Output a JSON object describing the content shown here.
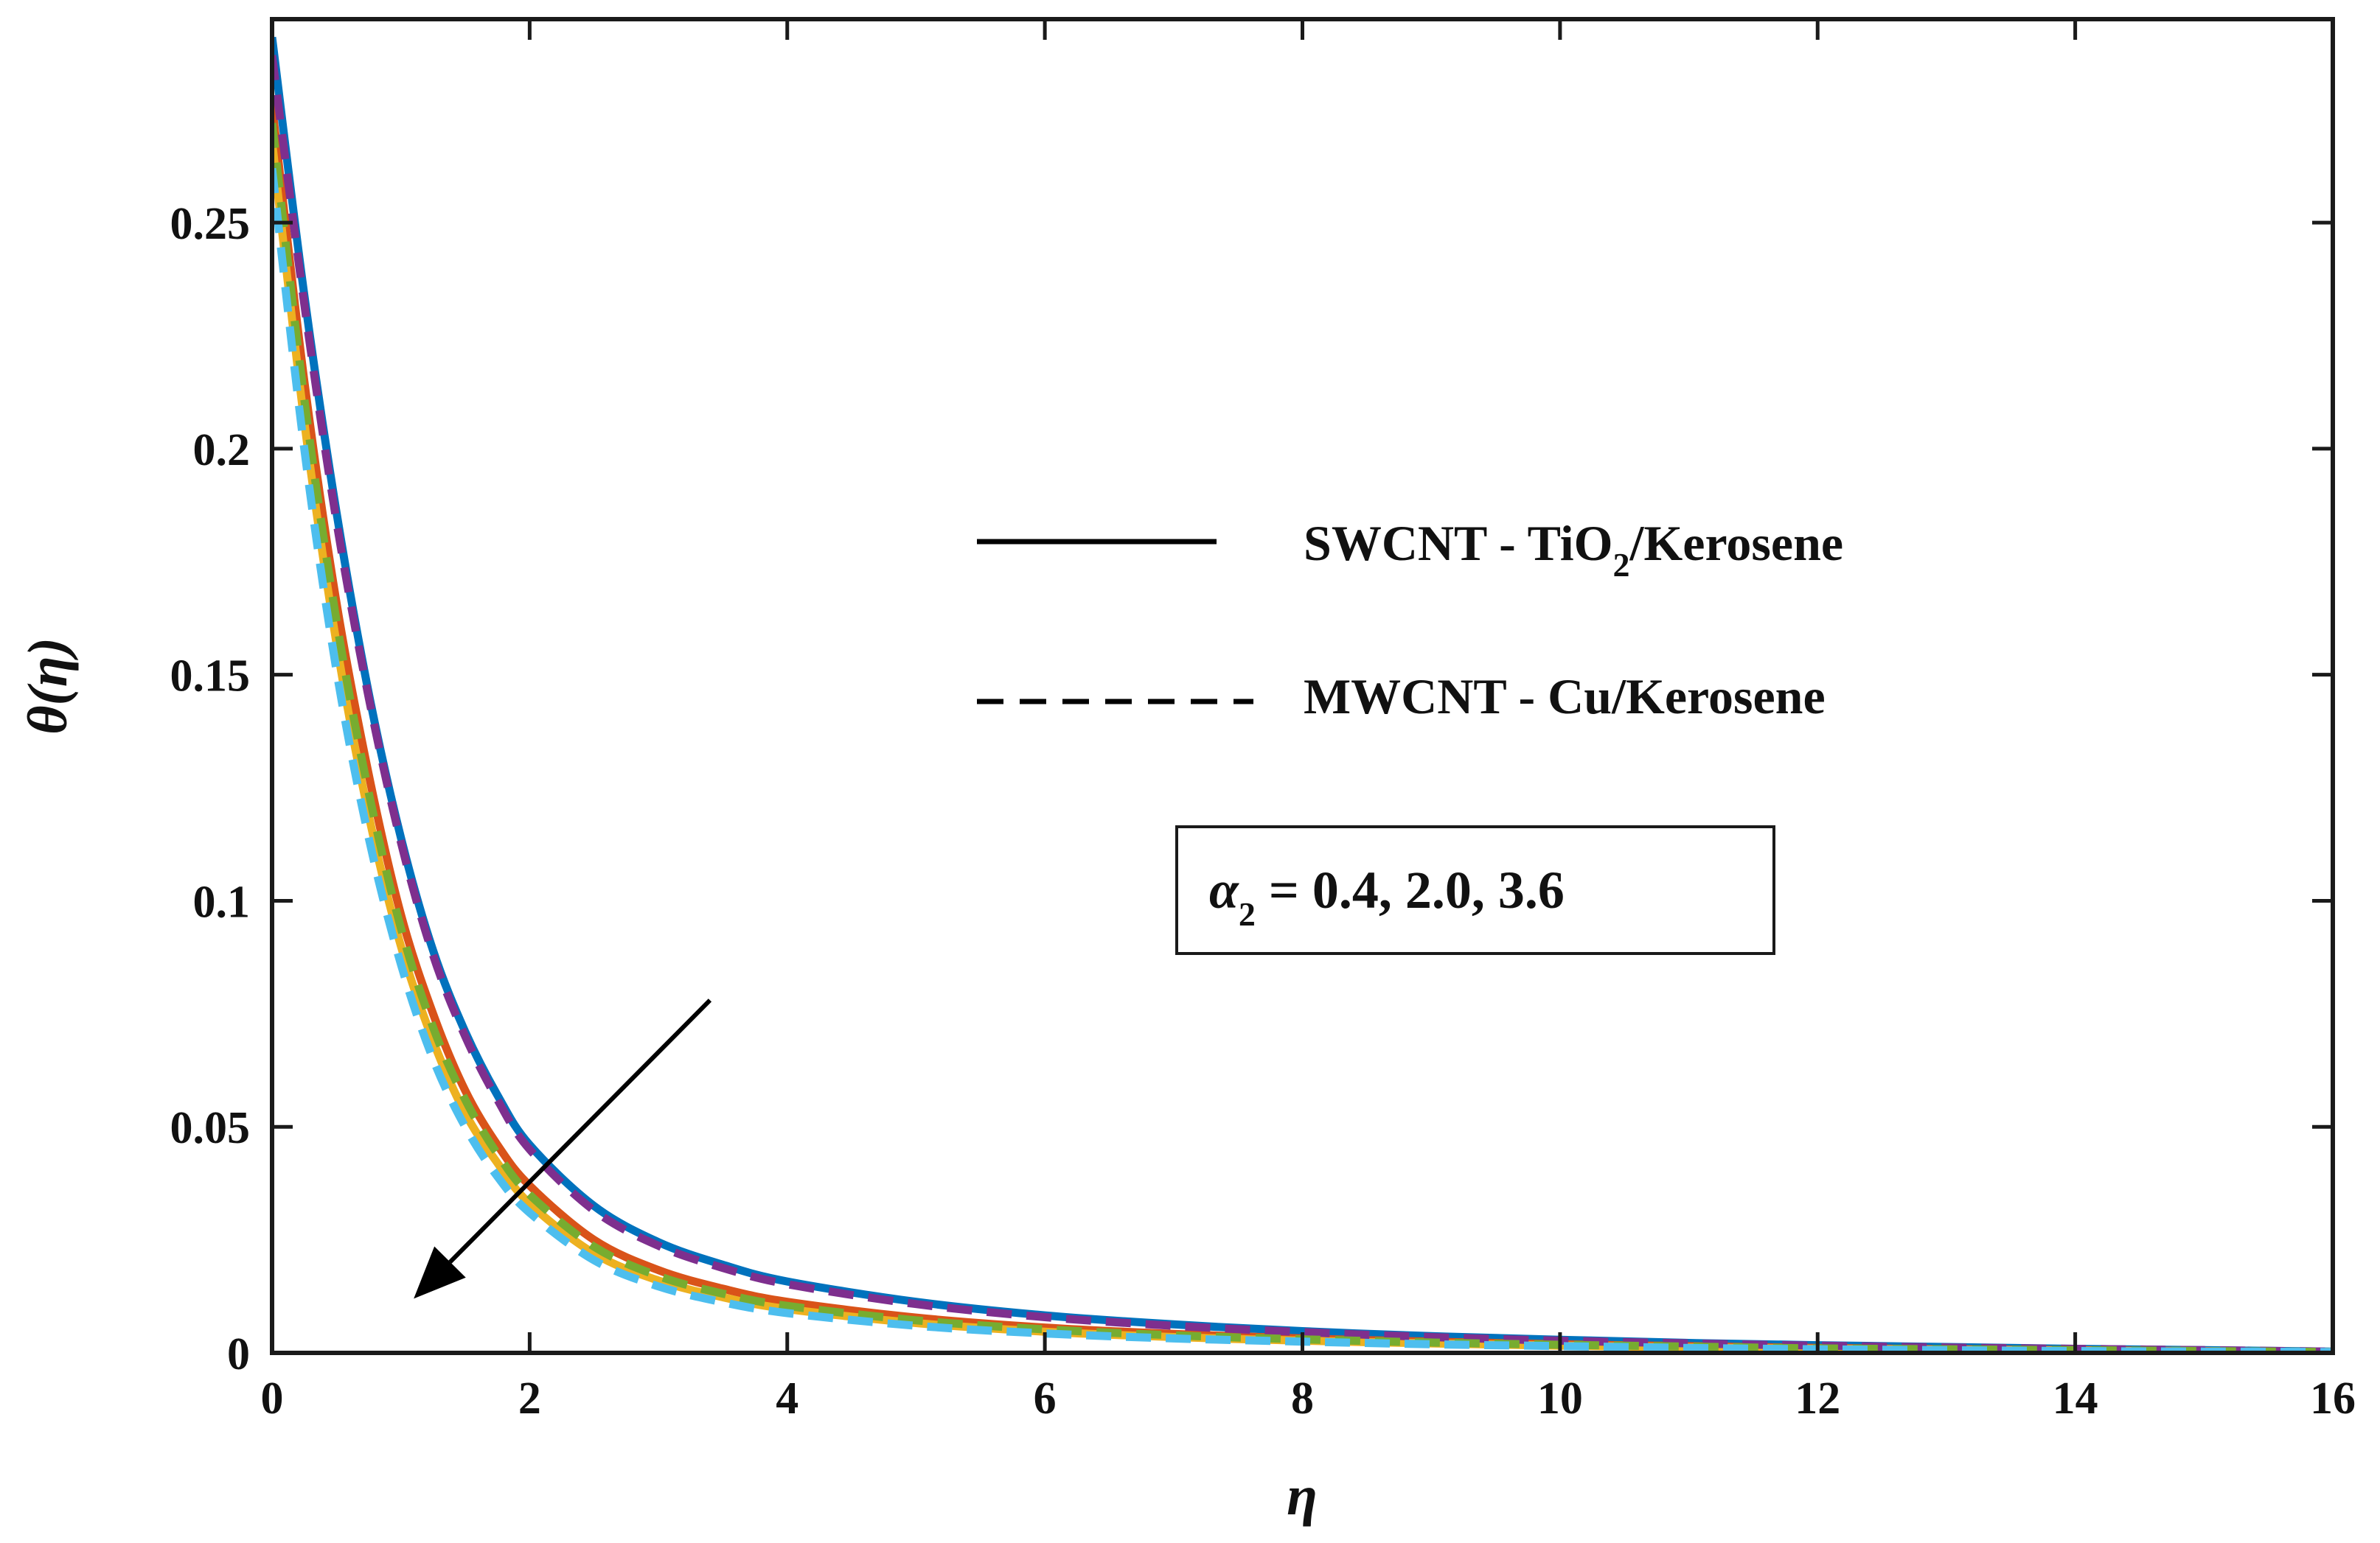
{
  "chart_data": {
    "type": "line",
    "title": "",
    "xlabel": "η",
    "ylabel": "θ(η)",
    "xlim": [
      0,
      16
    ],
    "ylim": [
      0,
      0.295
    ],
    "xticks": [
      0,
      2,
      4,
      6,
      8,
      10,
      12,
      14,
      16
    ],
    "xtick_labels": [
      "0",
      "2",
      "4",
      "6",
      "8",
      "10",
      "12",
      "14",
      "16"
    ],
    "yticks": [
      0,
      0.05,
      0.1,
      0.15,
      0.2,
      0.25
    ],
    "ytick_labels": [
      "0",
      "0.05",
      "0.1",
      "0.15",
      "0.2",
      "0.25"
    ],
    "grid": false,
    "legend": {
      "placement": "center-right",
      "entries": [
        {
          "style": "solid",
          "label_main": "SWCNT - TiO",
          "label_sub": "2",
          "label_tail": "/Kerosene"
        },
        {
          "style": "dashed",
          "label_main": "MWCNT - Cu/Kerosene",
          "label_sub": "",
          "label_tail": ""
        }
      ]
    },
    "annotation": {
      "symbol": "α",
      "subscript": "2",
      "text": " = 0.4, 2.0, 3.6",
      "arrow_from": [
        3.4,
        0.078
      ],
      "arrow_to": [
        1.1,
        0.012
      ],
      "arrow_color": "#000000"
    },
    "series": [
      {
        "name": "SWCNT - TiO2/Kerosene, α2 = 0.4",
        "style": "solid",
        "color": "#0072BD",
        "x": [
          0,
          0.25,
          0.5,
          0.75,
          1,
          1.25,
          1.5,
          1.75,
          2,
          2.5,
          3,
          3.5,
          4,
          5,
          6,
          7,
          8,
          9,
          10,
          11,
          12,
          13,
          14,
          15,
          16
        ],
        "y": [
          0.291,
          0.234,
          0.186,
          0.146,
          0.114,
          0.089,
          0.071,
          0.057,
          0.046,
          0.0325,
          0.0245,
          0.0195,
          0.0158,
          0.0113,
          0.0083,
          0.0063,
          0.0048,
          0.0037,
          0.0029,
          0.0022,
          0.0017,
          0.0013,
          0.0009,
          0.0006,
          0.0003
        ]
      },
      {
        "name": "SWCNT - TiO2/Kerosene, α2 = 2.0",
        "style": "solid",
        "color": "#D95319",
        "x": [
          0,
          0.25,
          0.5,
          0.75,
          1,
          1.25,
          1.5,
          1.75,
          2,
          2.5,
          3,
          3.5,
          4,
          5,
          6,
          7,
          8,
          9,
          10,
          11,
          12,
          13,
          14,
          15,
          16
        ],
        "y": [
          0.276,
          0.215,
          0.166,
          0.128,
          0.097,
          0.075,
          0.058,
          0.046,
          0.037,
          0.025,
          0.0183,
          0.0142,
          0.0113,
          0.0078,
          0.0056,
          0.0042,
          0.0032,
          0.0025,
          0.0019,
          0.0015,
          0.0011,
          0.0008,
          0.0006,
          0.0004,
          0.0002
        ]
      },
      {
        "name": "SWCNT - TiO2/Kerosene, α2 = 3.6",
        "style": "solid",
        "color": "#EDB120",
        "x": [
          0,
          0.25,
          0.5,
          0.75,
          1,
          1.25,
          1.5,
          1.75,
          2,
          2.5,
          3,
          3.5,
          4,
          5,
          6,
          7,
          8,
          9,
          10,
          11,
          12,
          13,
          14,
          15,
          16
        ],
        "y": [
          0.268,
          0.206,
          0.157,
          0.119,
          0.09,
          0.069,
          0.053,
          0.042,
          0.033,
          0.022,
          0.016,
          0.0123,
          0.0097,
          0.0066,
          0.0047,
          0.0035,
          0.0027,
          0.0021,
          0.0016,
          0.0012,
          0.0009,
          0.0007,
          0.0005,
          0.0003,
          0.0002
        ]
      },
      {
        "name": "MWCNT - Cu/Kerosene, α2 = 0.4",
        "style": "dashed",
        "color": "#7E2F8E",
        "x": [
          0,
          0.25,
          0.5,
          0.75,
          1,
          1.25,
          1.5,
          1.75,
          2,
          2.5,
          3,
          3.5,
          4,
          5,
          6,
          7,
          8,
          9,
          10,
          11,
          12,
          13,
          14,
          15,
          16
        ],
        "y": [
          0.287,
          0.232,
          0.184,
          0.145,
          0.113,
          0.088,
          0.07,
          0.056,
          0.045,
          0.0315,
          0.0237,
          0.0188,
          0.0152,
          0.0108,
          0.0079,
          0.006,
          0.0046,
          0.0035,
          0.0027,
          0.0021,
          0.0016,
          0.0012,
          0.0009,
          0.0006,
          0.0003
        ]
      },
      {
        "name": "MWCNT - Cu/Kerosene, α2 = 2.0",
        "style": "dashed",
        "color": "#77AC30",
        "x": [
          0,
          0.25,
          0.5,
          0.75,
          1,
          1.25,
          1.5,
          1.75,
          2,
          2.5,
          3,
          3.5,
          4,
          5,
          6,
          7,
          8,
          9,
          10,
          11,
          12,
          13,
          14,
          15,
          16
        ],
        "y": [
          0.272,
          0.211,
          0.162,
          0.124,
          0.094,
          0.072,
          0.056,
          0.044,
          0.035,
          0.0235,
          0.017,
          0.0131,
          0.0104,
          0.0072,
          0.0052,
          0.0039,
          0.003,
          0.0023,
          0.0018,
          0.0014,
          0.001,
          0.0008,
          0.0006,
          0.0004,
          0.0002
        ]
      },
      {
        "name": "MWCNT - Cu/Kerosene, α2 = 3.6",
        "style": "dashed",
        "color": "#4DBEEE",
        "x": [
          0,
          0.25,
          0.5,
          0.75,
          1,
          1.25,
          1.5,
          1.75,
          2,
          2.5,
          3,
          3.5,
          4,
          5,
          6,
          7,
          8,
          9,
          10,
          11,
          12,
          13,
          14,
          15,
          16
        ],
        "y": [
          0.262,
          0.2,
          0.151,
          0.114,
          0.086,
          0.065,
          0.05,
          0.039,
          0.031,
          0.0205,
          0.0147,
          0.0112,
          0.0088,
          0.006,
          0.0043,
          0.0032,
          0.0025,
          0.0019,
          0.0015,
          0.0011,
          0.0008,
          0.0006,
          0.0004,
          0.0003,
          0.0002
        ]
      }
    ]
  }
}
